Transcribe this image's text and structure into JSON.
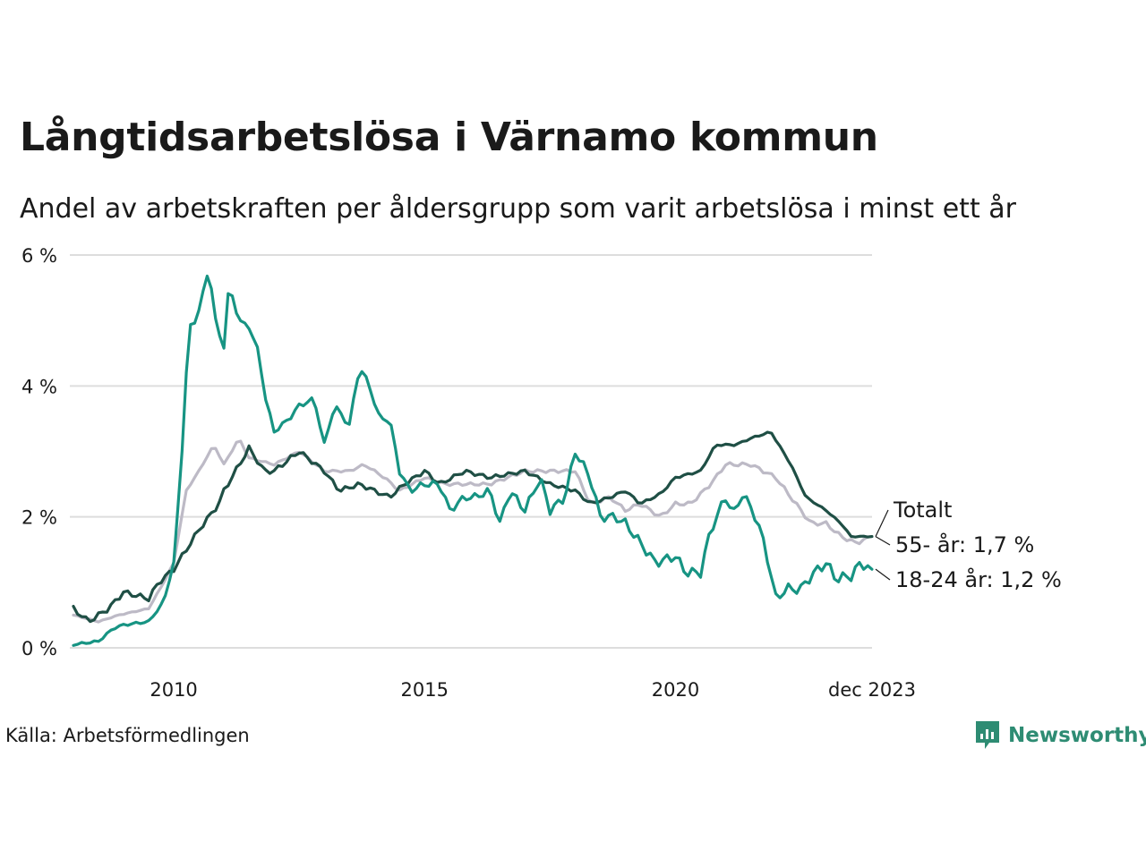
{
  "title": "Långtidsarbetslösa i Värnamo kommun",
  "subtitle": "Andel av arbetskraften per åldersgrupp som varit arbetslösa i minst ett år",
  "source": "Källa: Arbetsförmedlingen",
  "brand": "Newsworthy",
  "colors": {
    "youth": "#179483",
    "senior": "#1f4f45",
    "total": "#bdbac6",
    "grid": "#dddddd",
    "brand": "#2e8c73"
  },
  "chart_data": {
    "type": "line",
    "title": "Långtidsarbetslösa i Värnamo kommun",
    "xlabel": "",
    "ylabel": "",
    "x_start": 2008.0,
    "x_step": 0.08333,
    "xlim": [
      2008.0,
      2023.917
    ],
    "ylim": [
      0,
      6
    ],
    "yticks": [
      0,
      2,
      4,
      6
    ],
    "ytick_labels": [
      "0 %",
      "2 %",
      "4 %",
      "6 %"
    ],
    "xticks": [
      2010,
      2015,
      2020,
      2023.917
    ],
    "xtick_labels": [
      "2010",
      "2015",
      "2020",
      "dec 2023"
    ],
    "grid": true,
    "series": [
      {
        "name": "Totalt",
        "label": "Totalt",
        "color": "#bdbac6",
        "anchors": [
          [
            2008.0,
            0.5
          ],
          [
            2008.5,
            0.4
          ],
          [
            2008.9,
            0.5
          ],
          [
            2009.5,
            0.6
          ],
          [
            2009.8,
            1.0
          ],
          [
            2010.0,
            1.3
          ],
          [
            2010.25,
            2.4
          ],
          [
            2010.5,
            2.7
          ],
          [
            2010.8,
            3.1
          ],
          [
            2011.0,
            2.8
          ],
          [
            2011.3,
            3.2
          ],
          [
            2011.5,
            2.9
          ],
          [
            2012.0,
            2.8
          ],
          [
            2012.5,
            3.0
          ],
          [
            2013.0,
            2.7
          ],
          [
            2013.5,
            2.7
          ],
          [
            2013.8,
            2.8
          ],
          [
            2014.2,
            2.6
          ],
          [
            2014.5,
            2.4
          ],
          [
            2015.0,
            2.6
          ],
          [
            2015.4,
            2.5
          ],
          [
            2015.8,
            2.5
          ],
          [
            2016.3,
            2.5
          ],
          [
            2017.0,
            2.7
          ],
          [
            2017.5,
            2.7
          ],
          [
            2018.0,
            2.7
          ],
          [
            2018.3,
            2.2
          ],
          [
            2018.7,
            2.3
          ],
          [
            2019.0,
            2.1
          ],
          [
            2019.3,
            2.2
          ],
          [
            2019.7,
            2.0
          ],
          [
            2020.0,
            2.2
          ],
          [
            2020.3,
            2.2
          ],
          [
            2020.7,
            2.5
          ],
          [
            2021.0,
            2.8
          ],
          [
            2021.5,
            2.8
          ],
          [
            2022.0,
            2.6
          ],
          [
            2022.3,
            2.3
          ],
          [
            2022.7,
            1.9
          ],
          [
            2023.0,
            1.9
          ],
          [
            2023.3,
            1.7
          ],
          [
            2023.6,
            1.6
          ],
          [
            2023.917,
            1.7
          ]
        ],
        "noise": 0.03
      },
      {
        "name": "55- år",
        "label": "55- år: 1,7 %",
        "color": "#1f4f45",
        "anchors": [
          [
            2008.0,
            0.6
          ],
          [
            2008.3,
            0.4
          ],
          [
            2008.7,
            0.6
          ],
          [
            2009.0,
            0.85
          ],
          [
            2009.5,
            0.75
          ],
          [
            2009.7,
            1.0
          ],
          [
            2010.0,
            1.2
          ],
          [
            2010.5,
            1.8
          ],
          [
            2010.9,
            2.2
          ],
          [
            2011.0,
            2.4
          ],
          [
            2011.5,
            3.05
          ],
          [
            2011.8,
            2.7
          ],
          [
            2012.0,
            2.7
          ],
          [
            2012.5,
            3.0
          ],
          [
            2013.0,
            2.7
          ],
          [
            2013.3,
            2.4
          ],
          [
            2013.7,
            2.5
          ],
          [
            2014.3,
            2.3
          ],
          [
            2014.6,
            2.5
          ],
          [
            2015.0,
            2.7
          ],
          [
            2015.3,
            2.5
          ],
          [
            2015.8,
            2.7
          ],
          [
            2016.3,
            2.6
          ],
          [
            2017.0,
            2.7
          ],
          [
            2017.5,
            2.5
          ],
          [
            2018.0,
            2.4
          ],
          [
            2018.3,
            2.2
          ],
          [
            2018.7,
            2.3
          ],
          [
            2019.0,
            2.4
          ],
          [
            2019.3,
            2.2
          ],
          [
            2019.7,
            2.35
          ],
          [
            2020.0,
            2.6
          ],
          [
            2020.5,
            2.7
          ],
          [
            2020.8,
            3.1
          ],
          [
            2021.2,
            3.1
          ],
          [
            2021.5,
            3.2
          ],
          [
            2021.9,
            3.3
          ],
          [
            2022.3,
            2.8
          ],
          [
            2022.6,
            2.3
          ],
          [
            2023.0,
            2.1
          ],
          [
            2023.3,
            1.9
          ],
          [
            2023.5,
            1.7
          ],
          [
            2023.917,
            1.7
          ]
        ],
        "noise": 0.04
      },
      {
        "name": "18-24 år",
        "label": "18-24 år: 1,2 %",
        "color": "#179483",
        "anchors": [
          [
            2008.0,
            0.05
          ],
          [
            2008.5,
            0.1
          ],
          [
            2008.8,
            0.3
          ],
          [
            2009.0,
            0.35
          ],
          [
            2009.5,
            0.4
          ],
          [
            2009.8,
            0.7
          ],
          [
            2010.0,
            1.3
          ],
          [
            2010.15,
            2.8
          ],
          [
            2010.3,
            4.9
          ],
          [
            2010.45,
            5.0
          ],
          [
            2010.7,
            5.8
          ],
          [
            2010.85,
            4.9
          ],
          [
            2011.0,
            4.6
          ],
          [
            2011.1,
            5.55
          ],
          [
            2011.3,
            5.0
          ],
          [
            2011.5,
            4.9
          ],
          [
            2011.7,
            4.5
          ],
          [
            2011.8,
            3.9
          ],
          [
            2012.0,
            3.3
          ],
          [
            2012.3,
            3.5
          ],
          [
            2012.5,
            3.7
          ],
          [
            2012.8,
            3.8
          ],
          [
            2013.0,
            3.1
          ],
          [
            2013.2,
            3.7
          ],
          [
            2013.5,
            3.4
          ],
          [
            2013.7,
            4.3
          ],
          [
            2013.9,
            4.0
          ],
          [
            2014.1,
            3.5
          ],
          [
            2014.3,
            3.5
          ],
          [
            2014.5,
            2.7
          ],
          [
            2014.7,
            2.4
          ],
          [
            2015.0,
            2.5
          ],
          [
            2015.3,
            2.5
          ],
          [
            2015.5,
            2.1
          ],
          [
            2015.8,
            2.3
          ],
          [
            2016.0,
            2.3
          ],
          [
            2016.3,
            2.4
          ],
          [
            2016.5,
            1.9
          ],
          [
            2016.7,
            2.4
          ],
          [
            2017.0,
            2.1
          ],
          [
            2017.3,
            2.6
          ],
          [
            2017.5,
            2.1
          ],
          [
            2017.8,
            2.3
          ],
          [
            2018.0,
            3.0
          ],
          [
            2018.3,
            2.6
          ],
          [
            2018.5,
            2.0
          ],
          [
            2018.8,
            2.0
          ],
          [
            2019.0,
            1.9
          ],
          [
            2019.3,
            1.6
          ],
          [
            2019.6,
            1.3
          ],
          [
            2020.0,
            1.4
          ],
          [
            2020.2,
            1.15
          ],
          [
            2020.5,
            1.15
          ],
          [
            2020.7,
            1.8
          ],
          [
            2021.0,
            2.3
          ],
          [
            2021.2,
            2.0
          ],
          [
            2021.3,
            2.4
          ],
          [
            2021.6,
            2.0
          ],
          [
            2021.8,
            1.5
          ],
          [
            2022.0,
            0.75
          ],
          [
            2022.2,
            0.9
          ],
          [
            2022.5,
            0.9
          ],
          [
            2022.7,
            1.1
          ],
          [
            2023.0,
            1.3
          ],
          [
            2023.2,
            1.05
          ],
          [
            2023.5,
            1.1
          ],
          [
            2023.7,
            1.3
          ],
          [
            2023.917,
            1.2
          ]
        ],
        "noise": 0.08
      }
    ],
    "annotations": [
      "Totalt",
      "55- år: 1,7 %",
      "18-24 år: 1,2 %"
    ]
  }
}
